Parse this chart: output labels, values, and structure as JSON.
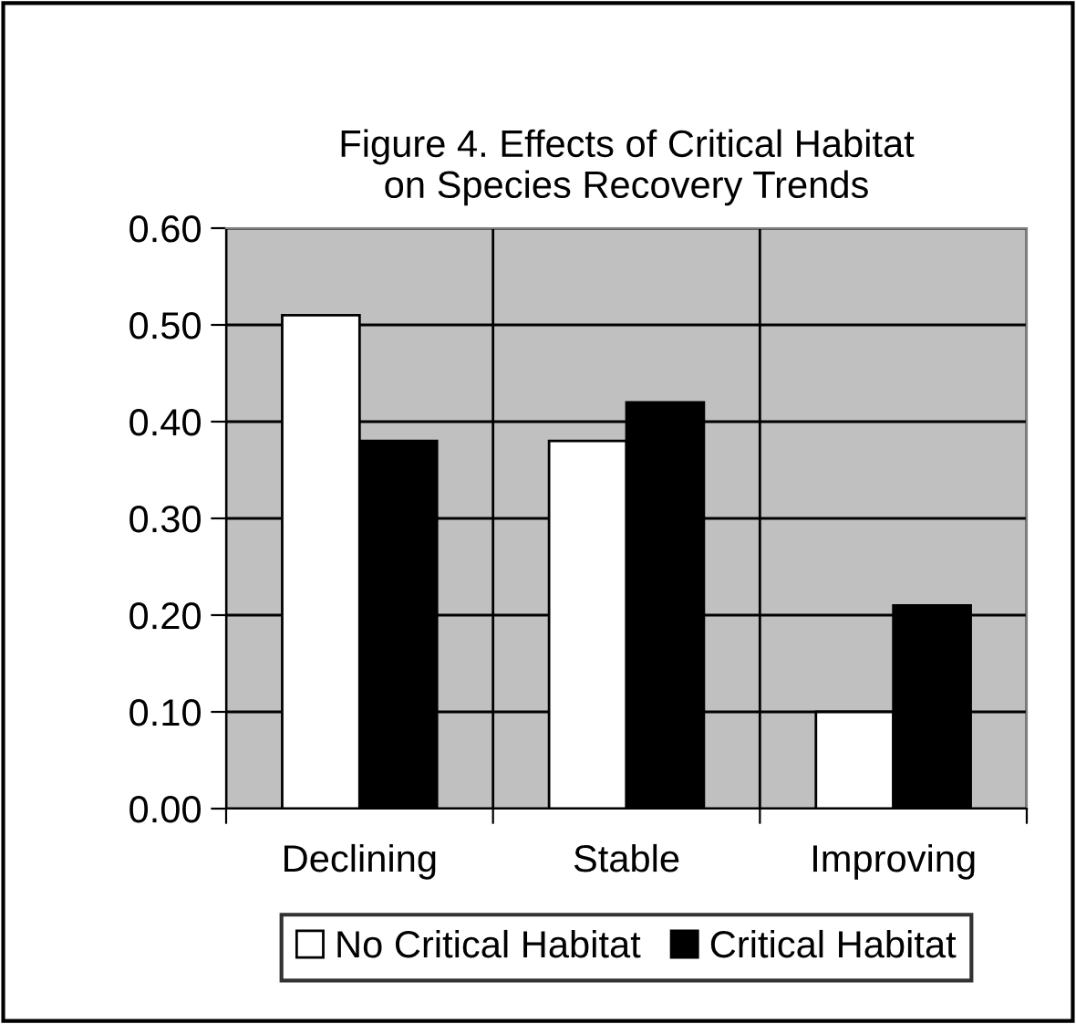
{
  "chart_data": {
    "type": "bar",
    "title": "Figure 4. Effects of Critical Habitat\non Species Recovery Trends",
    "categories": [
      "Declining",
      "Stable",
      "Improving"
    ],
    "series": [
      {
        "name": "No Critical Habitat",
        "color": "#ffffff",
        "values": [
          0.51,
          0.38,
          0.1
        ]
      },
      {
        "name": "Critical Habitat",
        "color": "#000000",
        "values": [
          0.38,
          0.42,
          0.21
        ]
      }
    ],
    "ylim": [
      0,
      0.6
    ],
    "yticks": [
      {
        "value": 0,
        "label": "0.00"
      },
      {
        "value": 0.1,
        "label": "0.10"
      },
      {
        "value": 0.2,
        "label": "0.20"
      },
      {
        "value": 0.3,
        "label": "0.30"
      },
      {
        "value": 0.4,
        "label": "0.40"
      },
      {
        "value": 0.5,
        "label": "0.50"
      },
      {
        "value": 0.6,
        "label": "0.60"
      }
    ],
    "grid": "y",
    "legend": "bottom"
  }
}
